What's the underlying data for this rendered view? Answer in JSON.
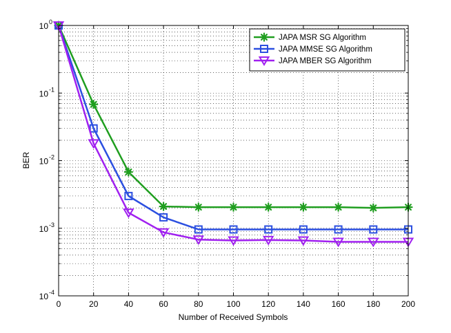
{
  "chart_data": {
    "type": "line",
    "title": "",
    "xlabel": "Number of Received Symbols",
    "ylabel": "BER",
    "xlim": [
      0,
      200
    ],
    "ylim_log10": [
      -4,
      0
    ],
    "yscale": "log",
    "grid": true,
    "legend_position": "top-right",
    "x": [
      0,
      20,
      40,
      60,
      80,
      100,
      120,
      140,
      160,
      180,
      200
    ],
    "x_tick_labels": [
      "0",
      "20",
      "40",
      "60",
      "80",
      "100",
      "120",
      "140",
      "160",
      "180",
      "200"
    ],
    "y_ticks": [
      {
        "base": "10",
        "exp": "-4"
      },
      {
        "base": "10",
        "exp": "-3"
      },
      {
        "base": "10",
        "exp": "-2"
      },
      {
        "base": "10",
        "exp": "-1"
      },
      {
        "base": "10",
        "exp": "0"
      }
    ],
    "series": [
      {
        "name": "JAPA MSR SG Algorithm",
        "color": "#1f9e1f",
        "marker": "asterisk",
        "values": [
          1.0,
          0.068,
          0.0068,
          0.0021,
          0.00205,
          0.00205,
          0.00205,
          0.00205,
          0.00205,
          0.002,
          0.00205
        ]
      },
      {
        "name": "JAPA MMSE SG Algorithm",
        "color": "#2b4fe0",
        "marker": "square",
        "values": [
          1.0,
          0.03,
          0.003,
          0.00145,
          0.00096,
          0.00096,
          0.00096,
          0.00096,
          0.00096,
          0.00096,
          0.00096
        ]
      },
      {
        "name": "JAPA MBER SG Algorithm",
        "color": "#a020f0",
        "marker": "triangle-down",
        "values": [
          1.0,
          0.018,
          0.0017,
          0.00087,
          0.00068,
          0.00066,
          0.00067,
          0.00066,
          0.00063,
          0.00063,
          0.00063
        ]
      }
    ]
  }
}
